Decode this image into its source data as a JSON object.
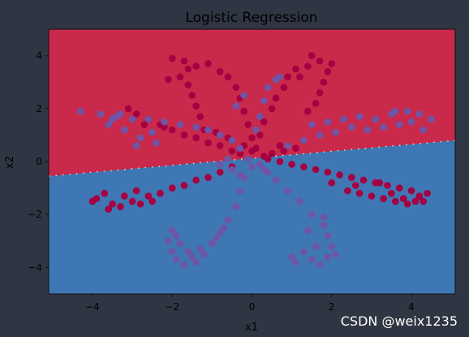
{
  "watermark": "CSDN @weix1235",
  "chart_data": {
    "type": "scatter",
    "title": "Logistic Regression",
    "xlabel": "x1",
    "ylabel": "x2",
    "xlim": [
      -5.1,
      5.1
    ],
    "ylim": [
      -5.0,
      5.0
    ],
    "xticks": [
      -4,
      -2,
      0,
      2,
      4
    ],
    "yticks": [
      -4,
      -2,
      0,
      2,
      4
    ],
    "grid": false,
    "colors": {
      "page_bg": "#2f3542",
      "region_red": "#c9294b",
      "region_blue": "#3f77b4",
      "class_red": "#a50042",
      "class_purple": "#6f55a6"
    },
    "decision_boundary": {
      "description": "linear",
      "points": [
        [
          -5.1,
          -0.55
        ],
        [
          5.1,
          0.8
        ]
      ]
    },
    "series": [
      {
        "class": "red",
        "points": [
          [
            -2.9,
            1.8
          ],
          [
            -2.6,
            1.6
          ],
          [
            -2.3,
            1.4
          ],
          [
            -2.0,
            1.2
          ],
          [
            -1.7,
            1.0
          ],
          [
            -1.4,
            0.9
          ],
          [
            -1.1,
            0.7
          ],
          [
            -0.8,
            0.6
          ],
          [
            -0.5,
            0.4
          ],
          [
            -0.3,
            0.3
          ],
          [
            -3.1,
            2.0
          ],
          [
            -2.7,
            1.4
          ],
          [
            -2.2,
            1.3
          ],
          [
            -3.9,
            -1.4
          ],
          [
            -3.5,
            -1.6
          ],
          [
            -3.0,
            -1.5
          ],
          [
            -2.6,
            -1.3
          ],
          [
            -2.3,
            -1.2
          ],
          [
            -2.0,
            -1.0
          ],
          [
            -1.7,
            -0.9
          ],
          [
            -1.4,
            -0.7
          ],
          [
            -1.1,
            -0.6
          ],
          [
            -0.8,
            -0.4
          ],
          [
            -0.5,
            -0.2
          ],
          [
            -4.0,
            -1.5
          ],
          [
            -3.7,
            -1.2
          ],
          [
            -3.3,
            -1.7
          ],
          [
            -2.8,
            -1.6
          ],
          [
            -3.6,
            -1.8
          ],
          [
            -3.2,
            -1.3
          ],
          [
            -2.5,
            -1.5
          ],
          [
            -2.9,
            -1.1
          ],
          [
            -2.0,
            3.9
          ],
          [
            -1.7,
            3.8
          ],
          [
            -1.4,
            3.6
          ],
          [
            -1.1,
            3.7
          ],
          [
            -0.8,
            3.4
          ],
          [
            -0.6,
            3.2
          ],
          [
            -0.4,
            2.8
          ],
          [
            -0.3,
            2.4
          ],
          [
            -0.2,
            1.9
          ],
          [
            -0.1,
            1.4
          ],
          [
            0.0,
            0.9
          ],
          [
            0.0,
            0.4
          ],
          [
            -1.8,
            3.2
          ],
          [
            -1.6,
            2.9
          ],
          [
            -1.5,
            2.5
          ],
          [
            -1.4,
            2.1
          ],
          [
            -1.3,
            1.7
          ],
          [
            -1.6,
            3.5
          ],
          [
            -2.1,
            3.1
          ],
          [
            -1.2,
            1.2
          ],
          [
            1.7,
            3.8
          ],
          [
            1.4,
            3.6
          ],
          [
            1.1,
            3.5
          ],
          [
            0.9,
            3.2
          ],
          [
            0.8,
            2.8
          ],
          [
            0.6,
            2.4
          ],
          [
            0.5,
            2.0
          ],
          [
            0.3,
            1.5
          ],
          [
            0.2,
            1.0
          ],
          [
            0.1,
            0.5
          ],
          [
            1.9,
            3.4
          ],
          [
            1.8,
            3.0
          ],
          [
            1.7,
            2.6
          ],
          [
            1.6,
            2.2
          ],
          [
            1.4,
            1.9
          ],
          [
            2.0,
            3.7
          ],
          [
            1.5,
            4.0
          ],
          [
            1.2,
            3.2
          ],
          [
            0.4,
            0.1
          ],
          [
            0.7,
            0.0
          ],
          [
            1.0,
            -0.1
          ],
          [
            1.3,
            -0.2
          ],
          [
            1.6,
            -0.3
          ],
          [
            1.9,
            -0.4
          ],
          [
            2.2,
            -0.5
          ],
          [
            2.5,
            -0.6
          ],
          [
            2.8,
            -0.7
          ],
          [
            3.1,
            -0.8
          ],
          [
            3.4,
            -0.9
          ],
          [
            3.7,
            -1.0
          ],
          [
            4.0,
            -1.1
          ],
          [
            4.2,
            -1.3
          ],
          [
            3.9,
            -1.6
          ],
          [
            3.6,
            -1.5
          ],
          [
            3.3,
            -1.4
          ],
          [
            3.0,
            -1.3
          ],
          [
            2.7,
            -1.2
          ],
          [
            2.4,
            -1.1
          ],
          [
            4.4,
            -1.2
          ],
          [
            4.1,
            -1.5
          ],
          [
            3.5,
            -1.2
          ],
          [
            3.8,
            -1.4
          ],
          [
            4.3,
            -1.5
          ],
          [
            3.2,
            -0.8
          ],
          [
            2.6,
            -0.9
          ],
          [
            2.0,
            -0.8
          ],
          [
            0.5,
            0.3
          ],
          [
            0.8,
            0.4
          ],
          [
            1.1,
            0.5
          ],
          [
            0.7,
            0.6
          ],
          [
            0.3,
            0.2
          ],
          [
            -0.6,
            0.9
          ],
          [
            -0.9,
            1.1
          ],
          [
            -0.2,
            0.6
          ]
        ]
      },
      {
        "class": "purple",
        "points": [
          [
            -4.3,
            1.9
          ],
          [
            -3.8,
            1.8
          ],
          [
            -3.4,
            1.7
          ],
          [
            -3.0,
            1.6
          ],
          [
            -2.6,
            1.6
          ],
          [
            -2.2,
            1.5
          ],
          [
            -1.8,
            1.4
          ],
          [
            -1.4,
            1.3
          ],
          [
            -1.1,
            1.2
          ],
          [
            -0.8,
            1.0
          ],
          [
            -0.5,
            0.8
          ],
          [
            -0.3,
            0.5
          ],
          [
            -3.6,
            1.4
          ],
          [
            -3.2,
            1.2
          ],
          [
            -2.8,
            0.9
          ],
          [
            -2.4,
            0.7
          ],
          [
            -3.5,
            1.6
          ],
          [
            -3.3,
            1.8
          ],
          [
            -2.9,
            0.6
          ],
          [
            -2.5,
            1.1
          ],
          [
            -2.0,
            -2.6
          ],
          [
            -2.1,
            -3.0
          ],
          [
            -2.0,
            -3.4
          ],
          [
            -1.9,
            -3.7
          ],
          [
            -1.7,
            -3.9
          ],
          [
            -1.4,
            -3.8
          ],
          [
            -1.2,
            -3.5
          ],
          [
            -1.0,
            -3.1
          ],
          [
            -0.8,
            -2.7
          ],
          [
            -0.6,
            -2.2
          ],
          [
            -0.4,
            -1.7
          ],
          [
            -0.3,
            -1.1
          ],
          [
            -0.2,
            -0.6
          ],
          [
            -1.8,
            -3.1
          ],
          [
            -1.6,
            -3.4
          ],
          [
            -1.9,
            -2.8
          ],
          [
            -1.5,
            -3.6
          ],
          [
            -1.3,
            -3.3
          ],
          [
            -0.9,
            -2.9
          ],
          [
            -0.7,
            -2.5
          ],
          [
            1.5,
            -3.7
          ],
          [
            1.7,
            -3.9
          ],
          [
            1.9,
            -3.6
          ],
          [
            2.0,
            -3.2
          ],
          [
            1.9,
            -2.8
          ],
          [
            1.8,
            -2.4
          ],
          [
            1.5,
            -2.0
          ],
          [
            1.2,
            -1.5
          ],
          [
            0.9,
            -1.1
          ],
          [
            0.6,
            -0.7
          ],
          [
            0.3,
            -0.3
          ],
          [
            1.0,
            -3.6
          ],
          [
            1.3,
            -3.4
          ],
          [
            1.6,
            -3.2
          ],
          [
            1.1,
            -3.8
          ],
          [
            1.8,
            -2.1
          ],
          [
            1.4,
            -2.6
          ],
          [
            2.1,
            -3.5
          ],
          [
            0.3,
            2.3
          ],
          [
            0.4,
            2.8
          ],
          [
            0.6,
            3.1
          ],
          [
            0.7,
            3.2
          ],
          [
            0.2,
            1.7
          ],
          [
            0.1,
            1.2
          ],
          [
            -0.4,
            2.1
          ],
          [
            -0.2,
            2.5
          ],
          [
            1.5,
            1.4
          ],
          [
            1.9,
            1.5
          ],
          [
            2.3,
            1.6
          ],
          [
            2.7,
            1.7
          ],
          [
            3.1,
            1.6
          ],
          [
            3.5,
            1.8
          ],
          [
            3.9,
            1.9
          ],
          [
            4.2,
            1.8
          ],
          [
            4.5,
            1.6
          ],
          [
            4.3,
            1.2
          ],
          [
            3.7,
            1.4
          ],
          [
            3.3,
            1.3
          ],
          [
            2.9,
            1.2
          ],
          [
            2.5,
            1.3
          ],
          [
            2.1,
            1.1
          ],
          [
            1.7,
            1.0
          ],
          [
            1.3,
            0.8
          ],
          [
            0.9,
            0.6
          ],
          [
            4.0,
            1.5
          ],
          [
            3.6,
            1.9
          ],
          [
            -0.5,
            -0.3
          ],
          [
            -0.8,
            -0.1
          ],
          [
            -0.3,
            -0.5
          ],
          [
            0.0,
            -0.2
          ],
          [
            0.2,
            -0.1
          ],
          [
            -0.1,
            0.1
          ],
          [
            0.4,
            -0.4
          ],
          [
            -0.6,
            0.1
          ]
        ]
      }
    ]
  }
}
